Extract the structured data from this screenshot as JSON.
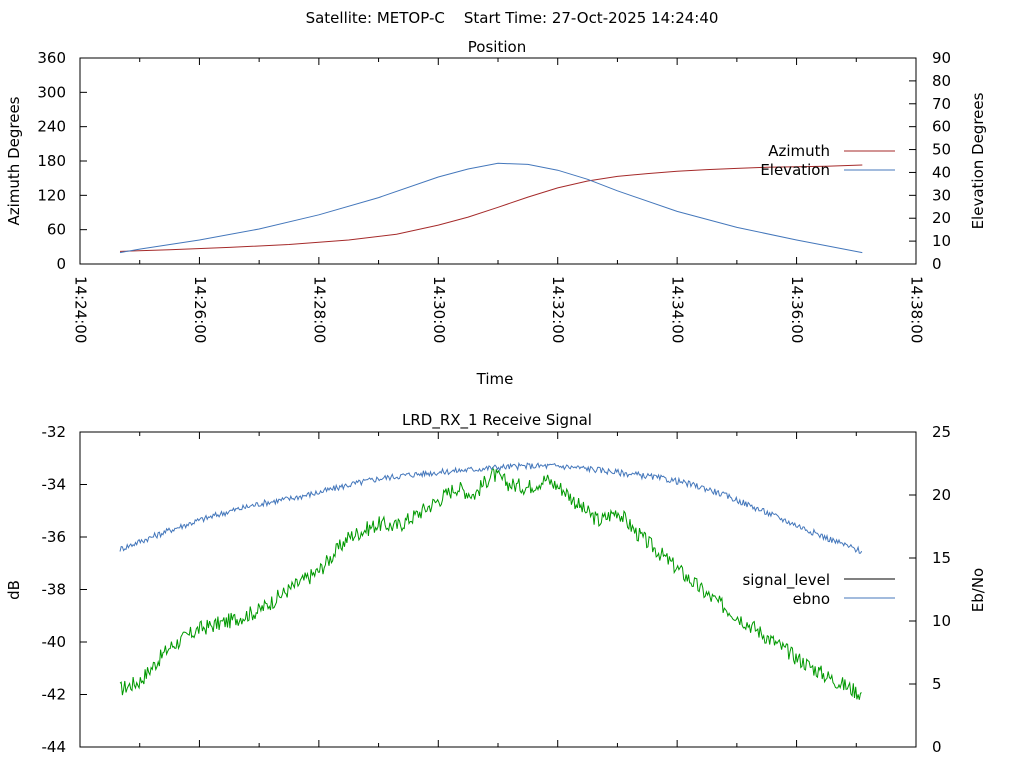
{
  "header": "Satellite: METOP-C    Start Time: 27-Oct-2025 14:24:40",
  "chart_data": [
    {
      "type": "line",
      "title": "Position",
      "xlabel": "Time",
      "ylabel": "Azimuth Degrees",
      "y2label": "Elevation Degrees",
      "xticks": [
        "14:24:00",
        "14:26:00",
        "14:28:00",
        "14:30:00",
        "14:32:00",
        "14:34:00",
        "14:36:00",
        "14:38:00"
      ],
      "xlim_minutes": [
        0,
        14
      ],
      "ylim": [
        0,
        360
      ],
      "yticks": [
        0,
        60,
        120,
        180,
        240,
        300,
        360
      ],
      "y2lim": [
        0,
        90
      ],
      "y2ticks": [
        0,
        10,
        20,
        30,
        40,
        50,
        60,
        70,
        80,
        90
      ],
      "legend_position": "right",
      "grid": false,
      "series": [
        {
          "name": "Azimuth",
          "axis": "y",
          "color": "#a52a2a",
          "x_minutes": [
            0.67,
            1.5,
            2.5,
            3.5,
            4.5,
            5.3,
            6.0,
            6.5,
            7.0,
            7.5,
            8.0,
            8.5,
            9.0,
            9.5,
            10.0,
            10.5,
            11.0,
            11.5,
            12.0,
            12.5,
            13.1
          ],
          "values": [
            22,
            25,
            29,
            34,
            42,
            52,
            68,
            82,
            99,
            117,
            133,
            145,
            153,
            158,
            162,
            165,
            167,
            169,
            170,
            171,
            173
          ]
        },
        {
          "name": "Elevation",
          "axis": "y2",
          "color": "#4477bb",
          "x_minutes": [
            0.67,
            1.0,
            2.0,
            3.0,
            4.0,
            5.0,
            6.0,
            6.5,
            7.0,
            7.5,
            8.0,
            8.5,
            9.0,
            10.0,
            11.0,
            12.0,
            13.1
          ],
          "values": [
            5,
            6.5,
            10.5,
            15.3,
            21.5,
            29,
            38,
            41.5,
            44,
            43.5,
            41,
            37,
            32,
            23,
            16,
            10.5,
            5
          ]
        }
      ]
    },
    {
      "type": "line",
      "title": "LRD_RX_1 Receive Signal",
      "ylabel": "dB",
      "y2label": "Eb/No",
      "ylim": [
        -44,
        -32
      ],
      "yticks": [
        -44,
        -42,
        -40,
        -38,
        -36,
        -34,
        -32
      ],
      "y2lim": [
        0,
        25
      ],
      "y2ticks": [
        0,
        5,
        10,
        15,
        20,
        25
      ],
      "legend_position": "right",
      "grid": false,
      "series": [
        {
          "name": "signal_level",
          "axis": "y",
          "color": "#009900",
          "legend_color": "#000000",
          "x_minutes": [
            0.67,
            1.0,
            1.5,
            2.0,
            2.5,
            3.0,
            3.5,
            4.0,
            4.5,
            5.0,
            5.3,
            5.6,
            6.0,
            6.3,
            6.6,
            6.9,
            7.2,
            7.5,
            7.8,
            8.1,
            8.4,
            8.7,
            9.0,
            9.3,
            9.6,
            10.0,
            10.5,
            11.0,
            11.5,
            12.0,
            12.5,
            13.1
          ],
          "values": [
            -41.8,
            -41.5,
            -40.2,
            -39.5,
            -39.2,
            -38.8,
            -38.0,
            -37.3,
            -36.0,
            -35.5,
            -35.6,
            -35.2,
            -34.6,
            -34.1,
            -34.4,
            -33.6,
            -34.0,
            -34.1,
            -33.8,
            -34.2,
            -34.9,
            -35.4,
            -35.0,
            -35.8,
            -36.4,
            -37.2,
            -38.2,
            -39.0,
            -39.8,
            -40.6,
            -41.3,
            -42.0
          ]
        },
        {
          "name": "ebno",
          "axis": "y2",
          "color": "#4477bb",
          "x_minutes": [
            0.67,
            1.0,
            1.5,
            2.0,
            2.5,
            3.0,
            3.5,
            4.0,
            4.5,
            5.0,
            5.5,
            6.0,
            6.5,
            7.0,
            7.5,
            8.0,
            8.5,
            9.0,
            9.5,
            10.0,
            10.5,
            11.0,
            11.5,
            12.0,
            12.5,
            13.1
          ],
          "values": [
            15.7,
            16.3,
            17.2,
            18.0,
            18.7,
            19.3,
            19.7,
            20.2,
            20.8,
            21.3,
            21.6,
            21.8,
            22.0,
            22.2,
            22.3,
            22.3,
            22.1,
            21.8,
            21.5,
            21.1,
            20.5,
            19.6,
            18.6,
            17.6,
            16.6,
            15.5
          ]
        }
      ]
    }
  ]
}
